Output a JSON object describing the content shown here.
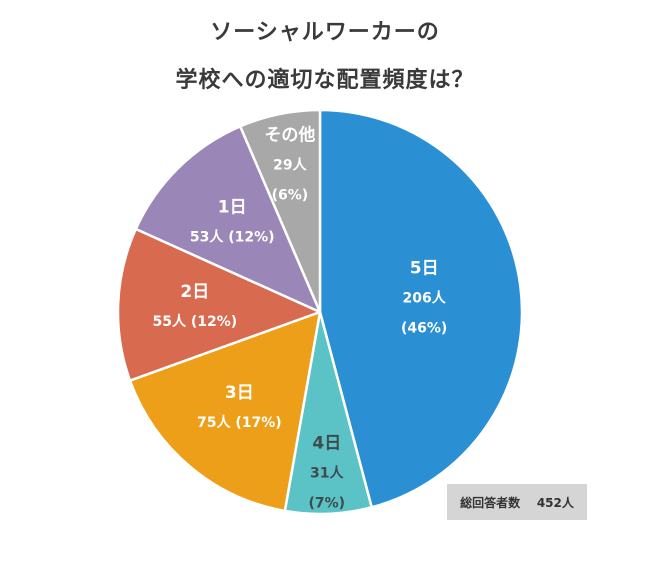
{
  "title_line1": "ソーシャルワーカーの",
  "title_line2": "学校への適切な配置頻度は？",
  "total": {
    "label": "総回答者数",
    "value": "452人"
  },
  "chart_data": {
    "type": "pie",
    "title": "ソーシャルワーカーの学校への適切な配置頻度は？",
    "total_respondents": 452,
    "slices": [
      {
        "label": "5日",
        "count": 206,
        "count_label": "206人",
        "percent_label": "(46%)",
        "percent": 46,
        "color": "#2b8fd3",
        "text_color": "#ffffff"
      },
      {
        "label": "4日",
        "count": 31,
        "count_label": "31人",
        "percent_label": "(7%)",
        "percent": 7,
        "color": "#5bc3c6",
        "text_color": "#3f4a4f"
      },
      {
        "label": "3日",
        "count": 75,
        "count_label": "75人 (17%)",
        "percent": 17,
        "color": "#ee9f1a",
        "text_color": "#ffffff"
      },
      {
        "label": "2日",
        "count": 55,
        "count_label": "55人 (12%)",
        "percent": 12,
        "color": "#d86a50",
        "text_color": "#ffffff"
      },
      {
        "label": "1日",
        "count": 53,
        "count_label": "53人 (12%)",
        "percent": 12,
        "color": "#9b86b8",
        "text_color": "#ffffff"
      },
      {
        "label": "その他",
        "count": 29,
        "count_label": "29人",
        "percent_label": "(6%)",
        "percent": 6,
        "color": "#a8a8a8",
        "text_color": "#ffffff"
      }
    ]
  }
}
